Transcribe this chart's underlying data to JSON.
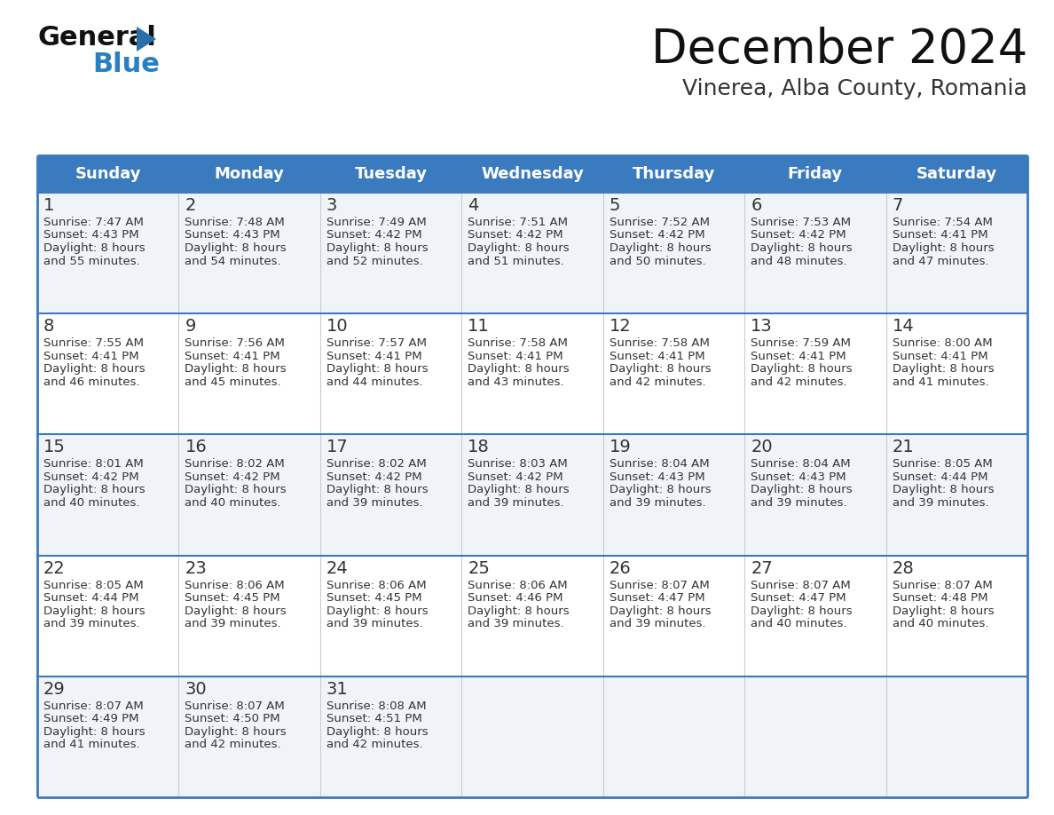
{
  "title": "December 2024",
  "subtitle": "Vinerea, Alba County, Romania",
  "header_bg_color": "#3a7abf",
  "header_text_color": "#ffffff",
  "cell_bg_light": "#f0f4f8",
  "cell_bg_white": "#ffffff",
  "border_color": "#3a7abf",
  "row_divider_color": "#3a7abf",
  "col_divider_color": "#cccccc",
  "text_color": "#333333",
  "day_names": [
    "Sunday",
    "Monday",
    "Tuesday",
    "Wednesday",
    "Thursday",
    "Friday",
    "Saturday"
  ],
  "days": [
    {
      "day": 1,
      "col": 0,
      "row": 0,
      "sunrise": "7:47 AM",
      "sunset": "4:43 PM",
      "daylight_hours": 8,
      "daylight_minutes": 55
    },
    {
      "day": 2,
      "col": 1,
      "row": 0,
      "sunrise": "7:48 AM",
      "sunset": "4:43 PM",
      "daylight_hours": 8,
      "daylight_minutes": 54
    },
    {
      "day": 3,
      "col": 2,
      "row": 0,
      "sunrise": "7:49 AM",
      "sunset": "4:42 PM",
      "daylight_hours": 8,
      "daylight_minutes": 52
    },
    {
      "day": 4,
      "col": 3,
      "row": 0,
      "sunrise": "7:51 AM",
      "sunset": "4:42 PM",
      "daylight_hours": 8,
      "daylight_minutes": 51
    },
    {
      "day": 5,
      "col": 4,
      "row": 0,
      "sunrise": "7:52 AM",
      "sunset": "4:42 PM",
      "daylight_hours": 8,
      "daylight_minutes": 50
    },
    {
      "day": 6,
      "col": 5,
      "row": 0,
      "sunrise": "7:53 AM",
      "sunset": "4:42 PM",
      "daylight_hours": 8,
      "daylight_minutes": 48
    },
    {
      "day": 7,
      "col": 6,
      "row": 0,
      "sunrise": "7:54 AM",
      "sunset": "4:41 PM",
      "daylight_hours": 8,
      "daylight_minutes": 47
    },
    {
      "day": 8,
      "col": 0,
      "row": 1,
      "sunrise": "7:55 AM",
      "sunset": "4:41 PM",
      "daylight_hours": 8,
      "daylight_minutes": 46
    },
    {
      "day": 9,
      "col": 1,
      "row": 1,
      "sunrise": "7:56 AM",
      "sunset": "4:41 PM",
      "daylight_hours": 8,
      "daylight_minutes": 45
    },
    {
      "day": 10,
      "col": 2,
      "row": 1,
      "sunrise": "7:57 AM",
      "sunset": "4:41 PM",
      "daylight_hours": 8,
      "daylight_minutes": 44
    },
    {
      "day": 11,
      "col": 3,
      "row": 1,
      "sunrise": "7:58 AM",
      "sunset": "4:41 PM",
      "daylight_hours": 8,
      "daylight_minutes": 43
    },
    {
      "day": 12,
      "col": 4,
      "row": 1,
      "sunrise": "7:58 AM",
      "sunset": "4:41 PM",
      "daylight_hours": 8,
      "daylight_minutes": 42
    },
    {
      "day": 13,
      "col": 5,
      "row": 1,
      "sunrise": "7:59 AM",
      "sunset": "4:41 PM",
      "daylight_hours": 8,
      "daylight_minutes": 42
    },
    {
      "day": 14,
      "col": 6,
      "row": 1,
      "sunrise": "8:00 AM",
      "sunset": "4:41 PM",
      "daylight_hours": 8,
      "daylight_minutes": 41
    },
    {
      "day": 15,
      "col": 0,
      "row": 2,
      "sunrise": "8:01 AM",
      "sunset": "4:42 PM",
      "daylight_hours": 8,
      "daylight_minutes": 40
    },
    {
      "day": 16,
      "col": 1,
      "row": 2,
      "sunrise": "8:02 AM",
      "sunset": "4:42 PM",
      "daylight_hours": 8,
      "daylight_minutes": 40
    },
    {
      "day": 17,
      "col": 2,
      "row": 2,
      "sunrise": "8:02 AM",
      "sunset": "4:42 PM",
      "daylight_hours": 8,
      "daylight_minutes": 39
    },
    {
      "day": 18,
      "col": 3,
      "row": 2,
      "sunrise": "8:03 AM",
      "sunset": "4:42 PM",
      "daylight_hours": 8,
      "daylight_minutes": 39
    },
    {
      "day": 19,
      "col": 4,
      "row": 2,
      "sunrise": "8:04 AM",
      "sunset": "4:43 PM",
      "daylight_hours": 8,
      "daylight_minutes": 39
    },
    {
      "day": 20,
      "col": 5,
      "row": 2,
      "sunrise": "8:04 AM",
      "sunset": "4:43 PM",
      "daylight_hours": 8,
      "daylight_minutes": 39
    },
    {
      "day": 21,
      "col": 6,
      "row": 2,
      "sunrise": "8:05 AM",
      "sunset": "4:44 PM",
      "daylight_hours": 8,
      "daylight_minutes": 39
    },
    {
      "day": 22,
      "col": 0,
      "row": 3,
      "sunrise": "8:05 AM",
      "sunset": "4:44 PM",
      "daylight_hours": 8,
      "daylight_minutes": 39
    },
    {
      "day": 23,
      "col": 1,
      "row": 3,
      "sunrise": "8:06 AM",
      "sunset": "4:45 PM",
      "daylight_hours": 8,
      "daylight_minutes": 39
    },
    {
      "day": 24,
      "col": 2,
      "row": 3,
      "sunrise": "8:06 AM",
      "sunset": "4:45 PM",
      "daylight_hours": 8,
      "daylight_minutes": 39
    },
    {
      "day": 25,
      "col": 3,
      "row": 3,
      "sunrise": "8:06 AM",
      "sunset": "4:46 PM",
      "daylight_hours": 8,
      "daylight_minutes": 39
    },
    {
      "day": 26,
      "col": 4,
      "row": 3,
      "sunrise": "8:07 AM",
      "sunset": "4:47 PM",
      "daylight_hours": 8,
      "daylight_minutes": 39
    },
    {
      "day": 27,
      "col": 5,
      "row": 3,
      "sunrise": "8:07 AM",
      "sunset": "4:47 PM",
      "daylight_hours": 8,
      "daylight_minutes": 40
    },
    {
      "day": 28,
      "col": 6,
      "row": 3,
      "sunrise": "8:07 AM",
      "sunset": "4:48 PM",
      "daylight_hours": 8,
      "daylight_minutes": 40
    },
    {
      "day": 29,
      "col": 0,
      "row": 4,
      "sunrise": "8:07 AM",
      "sunset": "4:49 PM",
      "daylight_hours": 8,
      "daylight_minutes": 41
    },
    {
      "day": 30,
      "col": 1,
      "row": 4,
      "sunrise": "8:07 AM",
      "sunset": "4:50 PM",
      "daylight_hours": 8,
      "daylight_minutes": 42
    },
    {
      "day": 31,
      "col": 2,
      "row": 4,
      "sunrise": "8:08 AM",
      "sunset": "4:51 PM",
      "daylight_hours": 8,
      "daylight_minutes": 42
    }
  ],
  "num_rows": 5,
  "num_cols": 7,
  "logo_general_color": "#111111",
  "logo_blue_color": "#2a7fc1",
  "logo_triangle_color": "#2a6faa"
}
